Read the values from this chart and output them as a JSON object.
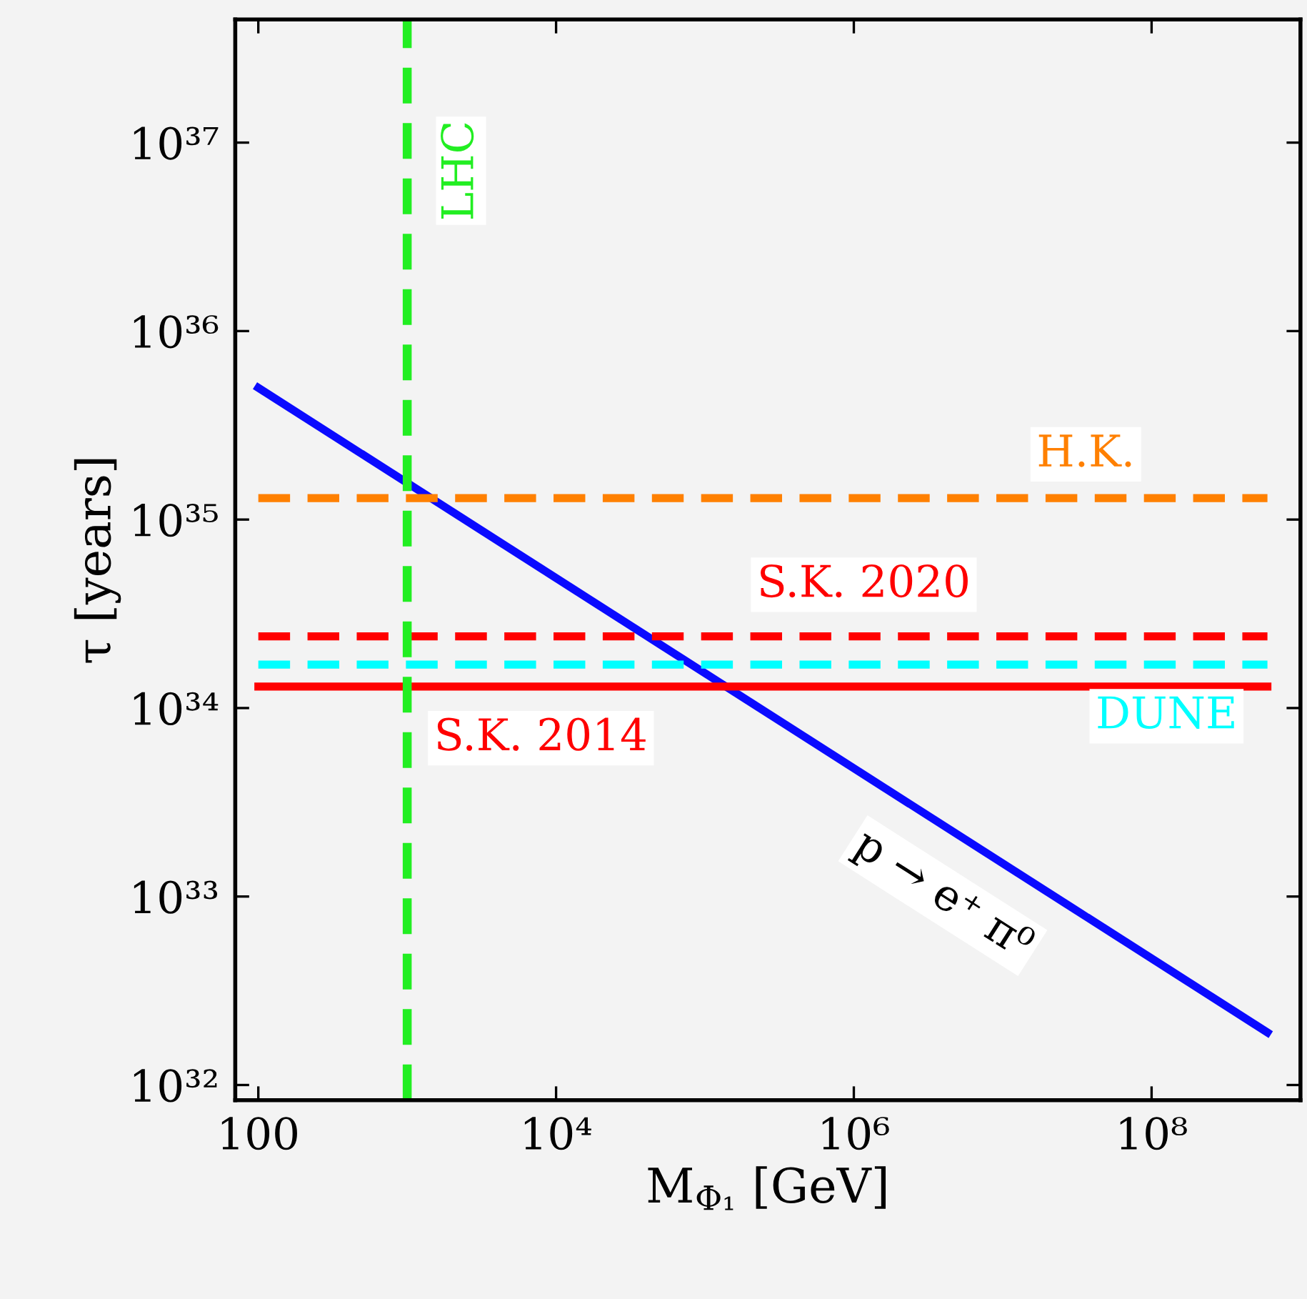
{
  "chart_data": {
    "type": "line",
    "xlabel": "M$_{Φ₁}$ [GeV]",
    "ylabel": "τ [years]",
    "log": "xy",
    "xlim": [
      70,
      1000000000
    ],
    "ylim": [
      8.3e+31,
      4.5e+37
    ],
    "xticks": [
      100,
      {
        "value": 10000,
        "label": "10⁴"
      },
      {
        "value": 1000000,
        "label": "10⁶"
      },
      {
        "value": 100000000,
        "label": "10⁸"
      }
    ],
    "yticks": [
      {
        "value": 1e+32,
        "label": "10³²"
      },
      {
        "value": 1e+33,
        "label": "10³³"
      },
      {
        "value": 1e+34,
        "label": "10³⁴"
      },
      {
        "value": 1e+35,
        "label": "10³⁵"
      },
      {
        "value": 1e+36,
        "label": "10³⁶"
      },
      {
        "value": 1e+37,
        "label": "10³⁷"
      }
    ],
    "grid": false,
    "legend": false,
    "x": [
      100,
      600000000
    ],
    "series": [
      {
        "name": "p → e⁺ π⁰",
        "color": "#0a0aff",
        "values": [
          5e+35,
          1.9e+32
        ],
        "line_style": "solid"
      },
      {
        "name": "H.K.",
        "color": "#ff8000",
        "values": [
          1.3e+35,
          1.3e+35
        ],
        "line_style": "dashed"
      },
      {
        "name": "S.K. 2020",
        "color": "#ff0000",
        "values": [
          2.4e+34,
          2.4e+34
        ],
        "line_style": "dashed"
      },
      {
        "name": "DUNE",
        "color": "#00ffff",
        "values": [
          1.7e+34,
          1.7e+34
        ],
        "line_style": "dashed"
      },
      {
        "name": "S.K. 2014",
        "color": "#ff0000",
        "values": [
          1.3e+34,
          1.3e+34
        ],
        "line_style": "solid"
      }
    ],
    "ref_lines": [
      {
        "axis": "x",
        "value": 1000,
        "label": "LHC",
        "color": "#22ee22",
        "line_style": "dashed"
      }
    ]
  }
}
